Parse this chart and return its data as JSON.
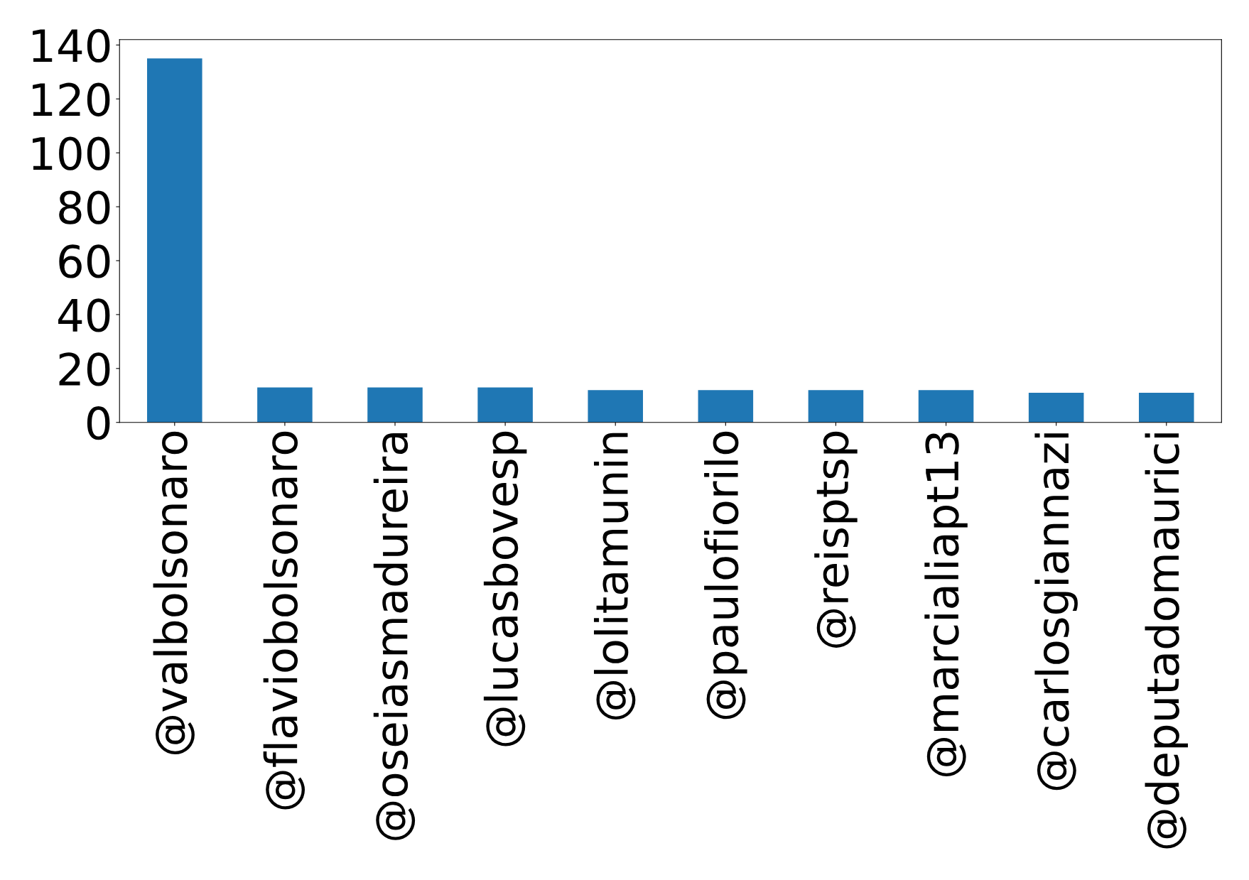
{
  "chart_data": {
    "type": "bar",
    "categories": [
      "@valbolsonaro",
      "@flaviobolsonaro",
      "@oseiasmadureira",
      "@lucasbovesp",
      "@lolitamunin",
      "@paulofiorilo",
      "@reisptsp",
      "@marcialiapt13",
      "@carlosgiannazi",
      "@deputadomaurici"
    ],
    "values": [
      135,
      13,
      13,
      13,
      12,
      12,
      12,
      12,
      11,
      11
    ],
    "color": "#1f77b4",
    "ylim": [
      0,
      142
    ],
    "yticks": [
      0,
      20,
      40,
      60,
      80,
      100,
      120,
      140
    ],
    "grid": false
  }
}
